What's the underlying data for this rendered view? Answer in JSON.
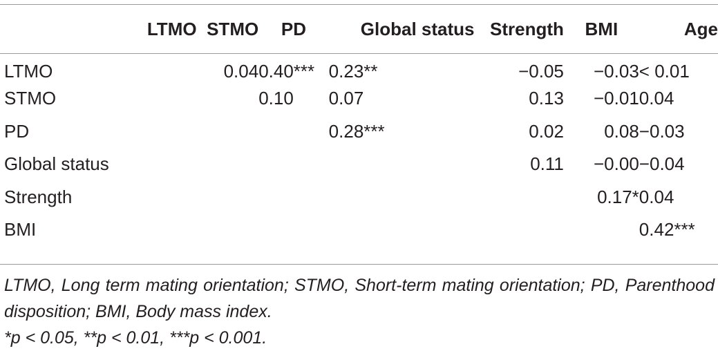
{
  "table": {
    "columns": [
      "",
      "LTMO",
      "STMO",
      "PD",
      "Global status",
      "Strength",
      "BMI",
      "Age"
    ],
    "rows": [
      {
        "label": "LTMO",
        "cells": [
          "",
          "0.04",
          "0.40***",
          "0.23**",
          "−0.05",
          "−0.03",
          "< 0.01"
        ]
      },
      {
        "label": "STMO",
        "cells": [
          "",
          "",
          "0.10",
          "0.07",
          "0.13",
          "−0.01",
          "0.04"
        ]
      },
      {
        "label": "PD",
        "cells": [
          "",
          "",
          "",
          "0.28***",
          "0.02",
          "0.08",
          "−0.03"
        ]
      },
      {
        "label": "Global status",
        "cells": [
          "",
          "",
          "",
          "",
          "0.11",
          "−0.00",
          "−0.04"
        ]
      },
      {
        "label": "Strength",
        "cells": [
          "",
          "",
          "",
          "",
          "",
          "0.17*",
          "0.04"
        ]
      },
      {
        "label": "BMI",
        "cells": [
          "",
          "",
          "",
          "",
          "",
          "",
          "0.42***"
        ]
      }
    ]
  },
  "footnotes": {
    "abbreviations": "LTMO, Long term mating orientation; STMO, Short-term mating orientation; PD, Parenthood disposition; BMI, Body mass index.",
    "significance": "*p < 0.05, **p < 0.01, ***p < 0.001."
  }
}
